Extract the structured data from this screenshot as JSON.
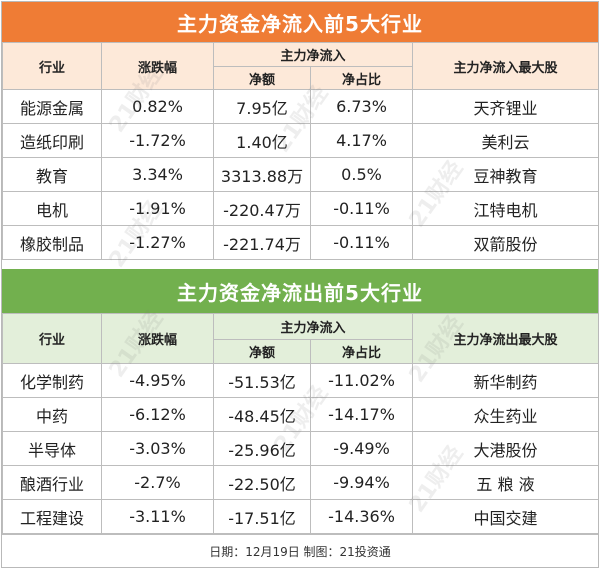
{
  "inflow": {
    "title": "主力资金净流入前5大行业",
    "headers": {
      "industry": "行业",
      "change": "涨跌幅",
      "net_group": "主力净流入",
      "amount": "净额",
      "ratio": "净占比",
      "top_stock": "主力净流入最大股"
    },
    "rows": [
      {
        "industry": "能源金属",
        "change": "0.82%",
        "amount": "7.95亿",
        "ratio": "6.73%",
        "stock": "天齐锂业"
      },
      {
        "industry": "造纸印刷",
        "change": "-1.72%",
        "amount": "1.40亿",
        "ratio": "4.17%",
        "stock": "美利云"
      },
      {
        "industry": "教育",
        "change": "3.34%",
        "amount": "3313.88万",
        "ratio": "0.5%",
        "stock": "豆神教育"
      },
      {
        "industry": "电机",
        "change": "-1.91%",
        "amount": "-220.47万",
        "ratio": "-0.11%",
        "stock": "江特电机"
      },
      {
        "industry": "橡胶制品",
        "change": "-1.27%",
        "amount": "-221.74万",
        "ratio": "-0.11%",
        "stock": "双箭股份"
      }
    ]
  },
  "outflow": {
    "title": "主力资金净流出前5大行业",
    "headers": {
      "industry": "行业",
      "change": "涨跌幅",
      "net_group": "主力净流入",
      "amount": "净额",
      "ratio": "净占比",
      "top_stock": "主力净流出最大股"
    },
    "rows": [
      {
        "industry": "化学制药",
        "change": "-4.95%",
        "amount": "-51.53亿",
        "ratio": "-11.02%",
        "stock": "新华制药"
      },
      {
        "industry": "中药",
        "change": "-6.12%",
        "amount": "-48.45亿",
        "ratio": "-14.17%",
        "stock": "众生药业"
      },
      {
        "industry": "半导体",
        "change": "-3.03%",
        "amount": "-25.96亿",
        "ratio": "-9.49%",
        "stock": "大港股份"
      },
      {
        "industry": "酿酒行业",
        "change": "-2.7%",
        "amount": "-22.50亿",
        "ratio": "-9.94%",
        "stock": "五 粮 液"
      },
      {
        "industry": "工程建设",
        "change": "-3.11%",
        "amount": "-17.51亿",
        "ratio": "-14.36%",
        "stock": "中国交建"
      }
    ]
  },
  "footer": "日期：12月19日 制图：21投资通",
  "watermark": "21财经",
  "colors": {
    "orange": "#ef7c35",
    "green": "#72b04e",
    "orange_header": "#fde9d9",
    "green_header": "#e3efda"
  }
}
